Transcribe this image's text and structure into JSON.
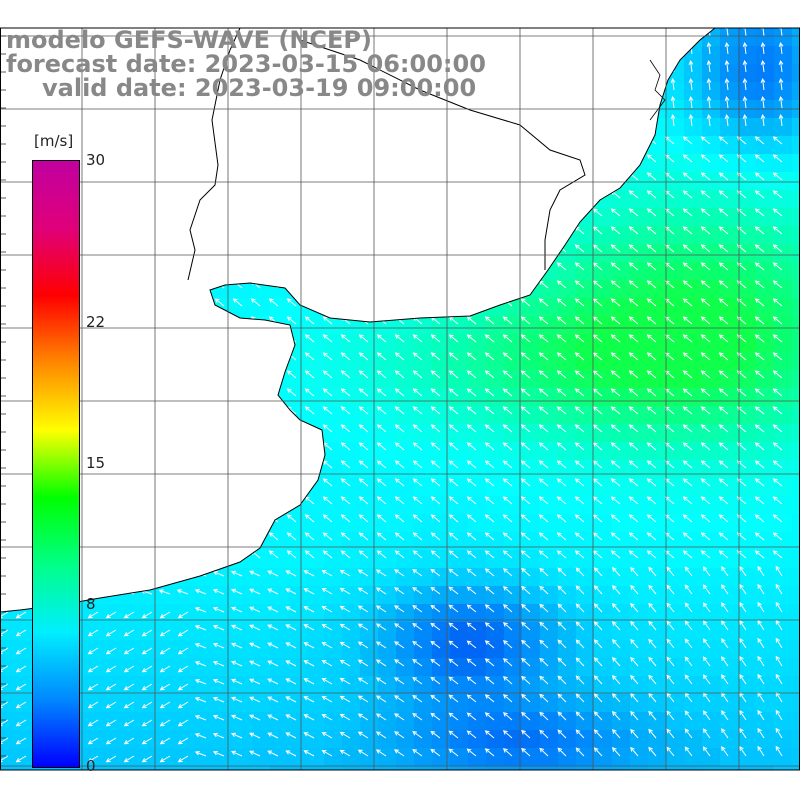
{
  "title": {
    "model": "modelo GEFS-WAVE (NCEP)",
    "forecast": "forecast date: 2023-03-15 06:00:00",
    "valid": "valid date: 2023-03-19 09:00:00"
  },
  "colorbar": {
    "unit": "[m/s]",
    "min": 0,
    "max": 30,
    "tick_labels": [
      "30",
      "22",
      "15",
      "8",
      "0"
    ],
    "tick_values": [
      30,
      22,
      15,
      8,
      0
    ],
    "colors": [
      "#0000ff",
      "#0088ff",
      "#00eeff",
      "#00ff88",
      "#00ff00",
      "#ffff00",
      "#ff8800",
      "#ff0000",
      "#e0007a",
      "#c000a0"
    ]
  },
  "map": {
    "land_color": "#ffffff",
    "coast_color": "#000000",
    "grid_color": "#555555",
    "grid": true,
    "field": "wind speed and direction",
    "prevailing_wind": "from south-east"
  }
}
